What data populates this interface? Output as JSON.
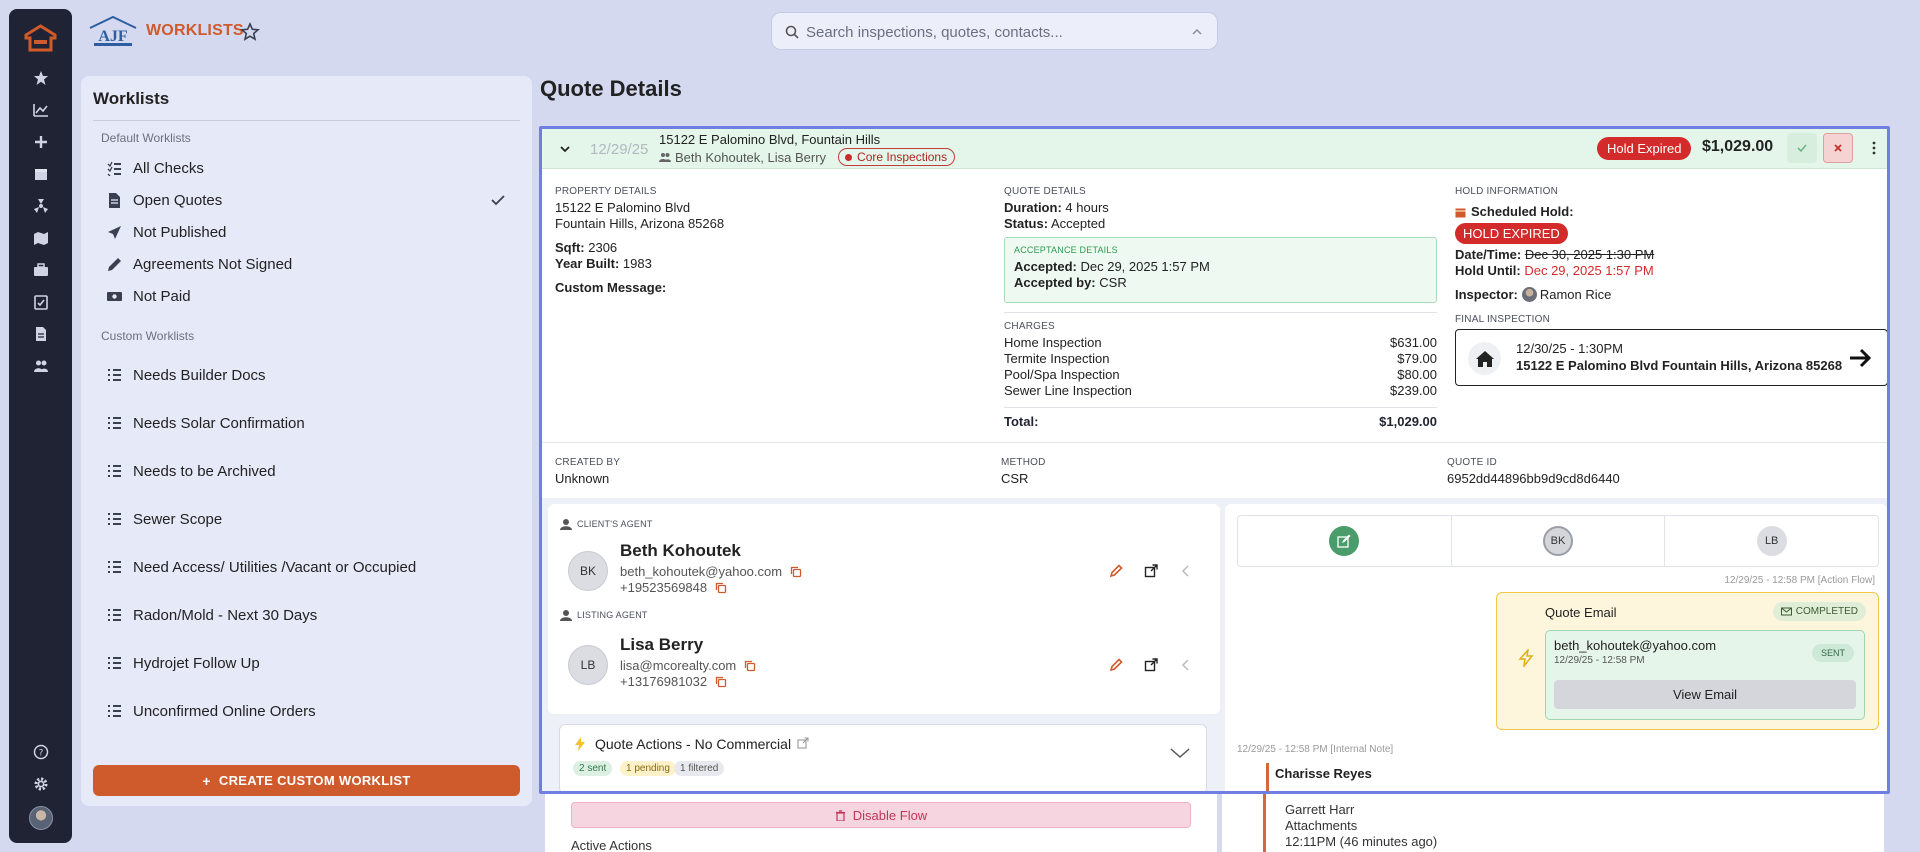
{
  "app": {
    "title": "WORKLISTS",
    "brand": "AJF"
  },
  "search": {
    "placeholder": "Search inspections, quotes, contacts..."
  },
  "sidebar": {
    "heading": "Worklists",
    "default_label": "Default Worklists",
    "custom_label": "Custom Worklists",
    "default_items": [
      {
        "label": "All Checks",
        "icon": "list-check-icon"
      },
      {
        "label": "Open Quotes",
        "icon": "file-invoice-icon",
        "selected": true
      },
      {
        "label": "Not Published",
        "icon": "paper-plane-icon"
      },
      {
        "label": "Agreements Not Signed",
        "icon": "pen-icon"
      },
      {
        "label": "Not Paid",
        "icon": "money-bill-icon"
      }
    ],
    "custom_items": [
      {
        "label": "Needs Builder Docs"
      },
      {
        "label": "Needs Solar Confirmation"
      },
      {
        "label": "Needs to be Archived"
      },
      {
        "label": "Sewer Scope"
      },
      {
        "label": "Need Access/ Utilities /Vacant or Occupied"
      },
      {
        "label": "Radon/Mold - Next 30 Days"
      },
      {
        "label": "Hydrojet Follow Up"
      },
      {
        "label": "Unconfirmed Online Orders"
      }
    ],
    "create_label": "CREATE CUSTOM WORKLIST"
  },
  "page": {
    "title": "Quote Details"
  },
  "quote": {
    "date": "12/29/25",
    "address": "15122 E Palomino Blvd, Fountain Hills",
    "people": "Beth Kohoutek, Lisa Berry",
    "tag": "Core Inspections",
    "hold_status": "Hold Expired",
    "price": "$1,029.00",
    "property": {
      "label": "PROPERTY DETAILS",
      "line1": "15122 E Palomino Blvd",
      "line2": "Fountain Hills, Arizona 85268",
      "sqft_label": "Sqft:",
      "sqft": "2306",
      "year_label": "Year Built:",
      "year": "1983",
      "custom_message_label": "Custom Message:"
    },
    "details": {
      "label": "QUOTE DETAILS",
      "duration_label": "Duration:",
      "duration": "4 hours",
      "status_label": "Status:",
      "status": "Accepted",
      "acceptance_label": "ACCEPTANCE DETAILS",
      "accepted_label": "Accepted:",
      "accepted": "Dec 29, 2025 1:57 PM",
      "accepted_by_label": "Accepted by:",
      "accepted_by": "CSR"
    },
    "charges": {
      "label": "CHARGES",
      "items": [
        {
          "name": "Home Inspection",
          "amount": "$631.00"
        },
        {
          "name": "Termite Inspection",
          "amount": "$79.00"
        },
        {
          "name": "Pool/Spa Inspection",
          "amount": "$80.00"
        },
        {
          "name": "Sewer Line Inspection",
          "amount": "$239.00"
        }
      ],
      "total_label": "Total:",
      "total": "$1,029.00"
    },
    "hold": {
      "label": "HOLD INFORMATION",
      "scheduled_label": "Scheduled Hold:",
      "badge": "HOLD EXPIRED",
      "datetime_label": "Date/Time:",
      "datetime": "Dec 30, 2025 1:30 PM",
      "until_label": "Hold Until:",
      "until": "Dec 29, 2025 1:57 PM",
      "inspector_label": "Inspector:",
      "inspector": "Ramon Rice"
    },
    "final": {
      "label": "FINAL INSPECTION",
      "when": "12/30/25 - 1:30PM",
      "where": "15122 E Palomino Blvd Fountain Hills, Arizona 85268"
    },
    "meta": {
      "created_label": "CREATED BY",
      "created": "Unknown",
      "method_label": "METHOD",
      "method": "CSR",
      "id_label": "QUOTE ID",
      "id": "6952dd44896bb9d9cd8d6440"
    }
  },
  "agents": {
    "client_label": "CLIENT'S AGENT",
    "client": {
      "initials": "BK",
      "name": "Beth Kohoutek",
      "email": "beth_kohoutek@yahoo.com",
      "phone": "+19523569848"
    },
    "listing_label": "LISTING AGENT",
    "listing": {
      "initials": "LB",
      "name": "Lisa Berry",
      "email": "lisa@mcorealty.com",
      "phone": "+13176981032"
    }
  },
  "quote_actions": {
    "title": "Quote Actions - No Commercial",
    "chips": [
      "2 sent",
      "1 pending",
      "1 filtered"
    ],
    "disable_label": "Disable Flow",
    "active_label": "Active Actions"
  },
  "timeline": {
    "tabs": [
      "",
      "BK",
      "LB"
    ],
    "stamp1": "12/29/25 - 12:58 PM [Action Flow]",
    "email_title": "Quote Email",
    "email_status": "COMPLETED",
    "email_to": "beth_kohoutek@yahoo.com",
    "email_time": "12/29/25 - 12:58 PM",
    "email_badge": "SENT",
    "view_label": "View Email",
    "stamp2": "12/29/25 - 12:58 PM [Internal Note]",
    "note_author": "Charisse Reyes",
    "note_line1": "Garrett Harr",
    "note_line2": "Attachments",
    "note_line3": "12:11PM (46 minutes ago)"
  },
  "colors": {
    "accent": "#cf5a2c",
    "rail": "#1f2333",
    "highlight": "#6f7ee0",
    "danger": "#d32b2b"
  }
}
